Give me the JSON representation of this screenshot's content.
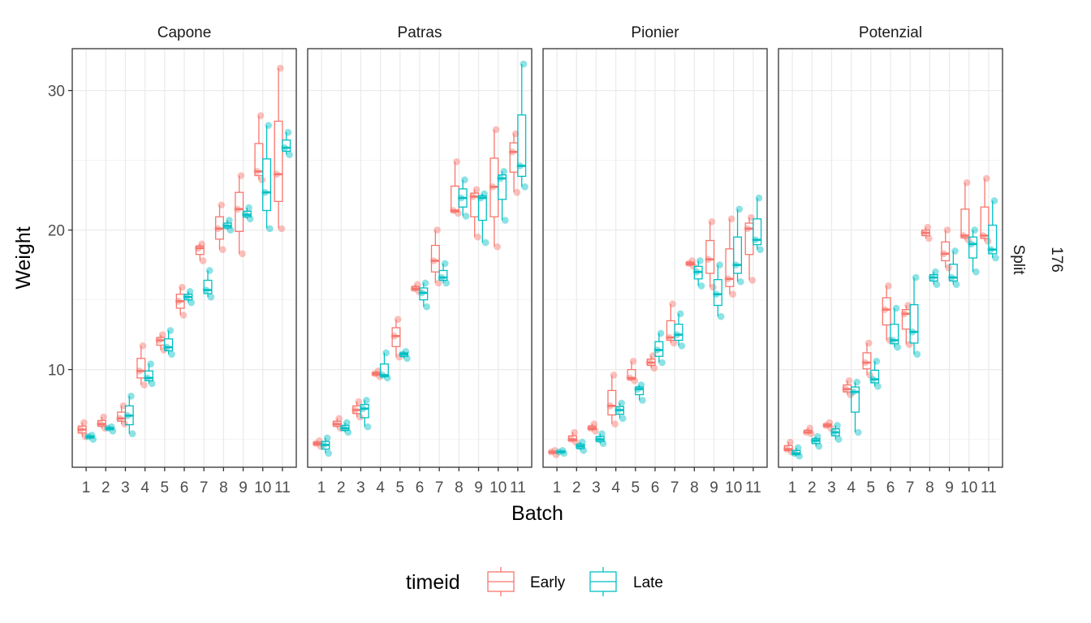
{
  "colors": {
    "Early": "#F8766D",
    "Late": "#00BFC4"
  },
  "chart_data": {
    "type": "box",
    "xlabel": "Batch",
    "ylabel": "Weight",
    "ylim": [
      3,
      33
    ],
    "yticks": [
      10,
      20,
      30
    ],
    "grid": true,
    "legend_position": "bottom",
    "legend_title": "timeid",
    "row_strips": [
      "Split",
      "176"
    ],
    "categories": [
      "1",
      "2",
      "3",
      "4",
      "5",
      "6",
      "7",
      "8",
      "9",
      "10",
      "11"
    ],
    "series_names": [
      "Early",
      "Late"
    ],
    "facets": [
      {
        "name": "Capone",
        "Early": [
          [
            5.2,
            5.7,
            6.2
          ],
          [
            5.8,
            6.1,
            6.6
          ],
          [
            6.1,
            6.5,
            7.4
          ],
          [
            8.9,
            9.9,
            11.7
          ],
          [
            11.4,
            12.1,
            12.5
          ],
          [
            13.9,
            14.9,
            15.9
          ],
          [
            17.8,
            18.7,
            19.0
          ],
          [
            18.6,
            20.1,
            21.8
          ],
          [
            18.3,
            21.5,
            23.9
          ],
          [
            23.6,
            24.2,
            28.2
          ],
          [
            20.1,
            24.0,
            31.6
          ]
        ],
        "Late": [
          [
            5.0,
            5.2,
            5.3
          ],
          [
            5.6,
            5.8,
            5.9
          ],
          [
            5.4,
            6.7,
            8.1
          ],
          [
            9.0,
            9.4,
            10.4
          ],
          [
            11.1,
            11.6,
            12.8
          ],
          [
            14.8,
            15.2,
            15.6
          ],
          [
            15.2,
            15.7,
            17.1
          ],
          [
            20.0,
            20.3,
            20.7
          ],
          [
            20.8,
            21.1,
            21.6
          ],
          [
            20.1,
            22.7,
            27.5
          ],
          [
            25.4,
            25.9,
            27.0
          ]
        ]
      },
      {
        "name": "Patras",
        "Early": [
          [
            4.5,
            4.7,
            4.9
          ],
          [
            5.8,
            6.1,
            6.5
          ],
          [
            6.6,
            7.1,
            7.7
          ],
          [
            9.5,
            9.7,
            9.9
          ],
          [
            10.9,
            12.4,
            13.6
          ],
          [
            15.6,
            15.8,
            16.1
          ],
          [
            16.2,
            17.8,
            20.0
          ],
          [
            21.2,
            21.4,
            24.9
          ],
          [
            19.5,
            22.4,
            22.9
          ],
          [
            18.8,
            23.1,
            27.2
          ],
          [
            22.7,
            25.6,
            26.9
          ]
        ],
        "Late": [
          [
            4.0,
            4.6,
            5.1
          ],
          [
            5.5,
            5.8,
            6.2
          ],
          [
            5.9,
            7.2,
            7.8
          ],
          [
            9.4,
            9.6,
            11.2
          ],
          [
            10.8,
            11.1,
            11.3
          ],
          [
            14.5,
            15.5,
            16.2
          ],
          [
            16.2,
            16.6,
            17.6
          ],
          [
            21.0,
            22.3,
            23.6
          ],
          [
            19.1,
            22.3,
            22.6
          ],
          [
            20.7,
            23.7,
            24.2
          ],
          [
            23.1,
            24.6,
            31.9
          ]
        ]
      },
      {
        "name": "Pionier",
        "Early": [
          [
            3.9,
            4.1,
            4.2
          ],
          [
            4.8,
            5.0,
            5.5
          ],
          [
            5.6,
            5.8,
            6.1
          ],
          [
            6.1,
            7.4,
            9.6
          ],
          [
            9.2,
            9.4,
            10.6
          ],
          [
            10.1,
            10.5,
            11.0
          ],
          [
            11.9,
            12.3,
            14.7
          ],
          [
            17.4,
            17.6,
            17.8
          ],
          [
            15.9,
            17.9,
            20.6
          ],
          [
            15.4,
            16.5,
            20.8
          ],
          [
            16.4,
            20.1,
            20.9
          ]
        ],
        "Late": [
          [
            4.0,
            4.1,
            4.2
          ],
          [
            4.2,
            4.5,
            4.8
          ],
          [
            4.7,
            5.0,
            5.4
          ],
          [
            6.5,
            7.1,
            7.6
          ],
          [
            7.8,
            8.6,
            8.9
          ],
          [
            10.5,
            11.4,
            12.6
          ],
          [
            11.7,
            12.5,
            14.0
          ],
          [
            16.0,
            17.0,
            17.8
          ],
          [
            13.8,
            15.4,
            17.5
          ],
          [
            16.3,
            17.5,
            21.5
          ],
          [
            18.6,
            19.3,
            22.3
          ]
        ]
      },
      {
        "name": "Potenzial",
        "Early": [
          [
            4.1,
            4.3,
            4.8
          ],
          [
            5.4,
            5.5,
            5.8
          ],
          [
            5.8,
            6.0,
            6.2
          ],
          [
            8.2,
            8.6,
            9.2
          ],
          [
            9.6,
            10.5,
            11.9
          ],
          [
            12.1,
            14.3,
            16.0
          ],
          [
            11.8,
            14.0,
            14.6
          ],
          [
            19.4,
            19.8,
            20.2
          ],
          [
            17.3,
            18.3,
            20.0
          ],
          [
            19.3,
            19.6,
            23.4
          ],
          [
            19.2,
            19.6,
            23.7
          ]
        ],
        "Late": [
          [
            3.8,
            4.0,
            4.4
          ],
          [
            4.5,
            4.9,
            5.2
          ],
          [
            5.0,
            5.5,
            6.0
          ],
          [
            5.5,
            8.4,
            9.1
          ],
          [
            8.8,
            9.3,
            10.6
          ],
          [
            11.6,
            12.1,
            14.4
          ],
          [
            11.1,
            12.7,
            16.6
          ],
          [
            16.1,
            16.6,
            17.0
          ],
          [
            16.1,
            16.6,
            18.5
          ],
          [
            17.0,
            19.0,
            20.0
          ],
          [
            18.0,
            18.6,
            22.1
          ]
        ]
      }
    ]
  }
}
